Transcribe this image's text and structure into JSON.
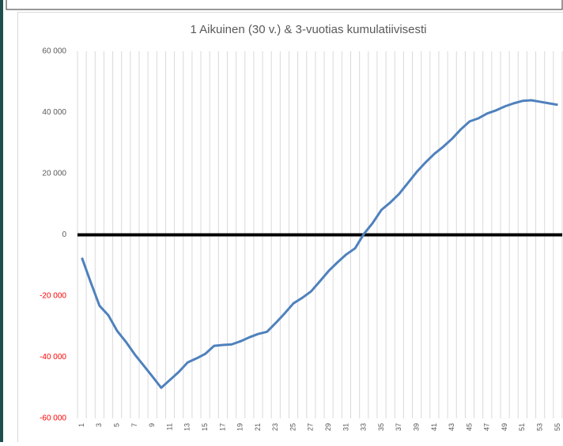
{
  "chart_data": {
    "type": "line",
    "title": "1 Aikuinen (30 v.) & 3-vuotias kumulatiivisesti",
    "categories": [
      "1",
      null,
      "3",
      null,
      "5",
      null,
      "7",
      null,
      "9",
      null,
      "11",
      null,
      "13",
      null,
      "15",
      null,
      "17",
      null,
      "19",
      null,
      "21",
      null,
      "23",
      null,
      "25",
      null,
      "27",
      null,
      "29",
      null,
      "31",
      null,
      "33",
      null,
      "35",
      null,
      "37",
      null,
      "39",
      null,
      "41",
      null,
      "43",
      null,
      "45",
      null,
      "47",
      null,
      "49",
      null,
      "51",
      null,
      "53",
      null,
      "55"
    ],
    "series": [
      {
        "name": "kumulatiivisesti",
        "color": "#4f81bd",
        "values": [
          -7500,
          -15500,
          -23200,
          -26300,
          -31400,
          -35000,
          -39100,
          -42700,
          -46300,
          -50000,
          -47400,
          -44800,
          -41700,
          -40400,
          -38900,
          -36300,
          -36000,
          -35800,
          -34800,
          -33500,
          -32400,
          -31700,
          -28800,
          -25700,
          -22400,
          -20600,
          -18500,
          -15200,
          -11800,
          -9000,
          -6400,
          -4400,
          300,
          3900,
          8200,
          10600,
          13400,
          17000,
          20600,
          23700,
          26500,
          28800,
          31400,
          34500,
          37100,
          38100,
          39700,
          40700,
          42000,
          43000,
          43800,
          44000,
          43500,
          43000,
          42500
        ]
      }
    ],
    "ylim": [
      -60000,
      60000
    ],
    "yticks": [
      {
        "value": -60000,
        "label": "-60 000"
      },
      {
        "value": -40000,
        "label": "-40 000"
      },
      {
        "value": -20000,
        "label": "-20 000"
      },
      0,
      {
        "value": 20000,
        "label": "20 000"
      },
      {
        "value": 40000,
        "label": "40 000"
      },
      {
        "value": 60000,
        "label": "60 000"
      }
    ],
    "tick_color": "#595959",
    "negative_tick_color": "#ff0000",
    "grid": true
  }
}
